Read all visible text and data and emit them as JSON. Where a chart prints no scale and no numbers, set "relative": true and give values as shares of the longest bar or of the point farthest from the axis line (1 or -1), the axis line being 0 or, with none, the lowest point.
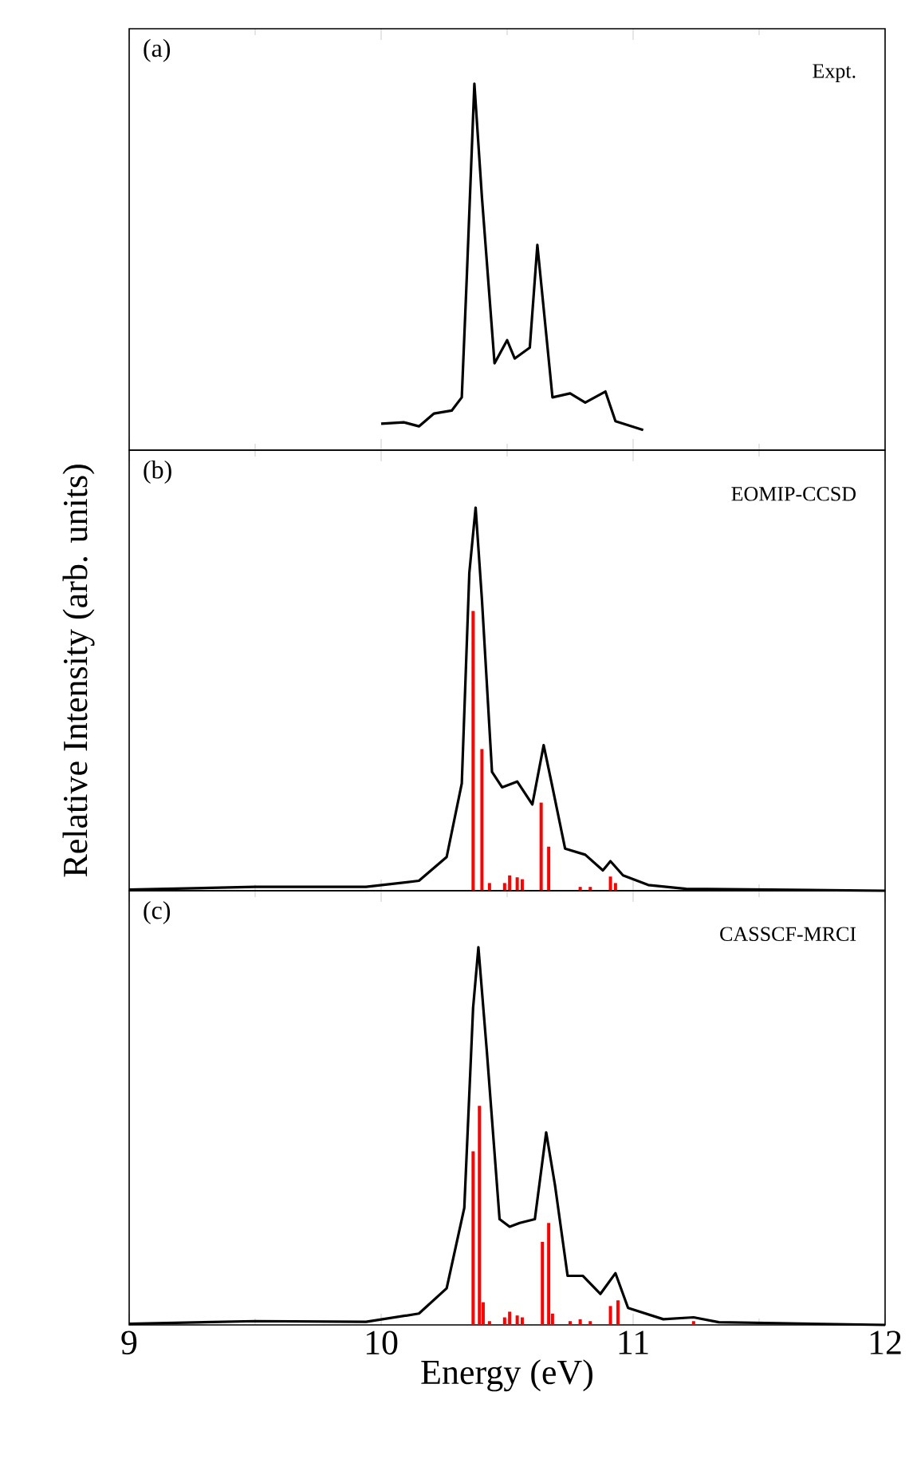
{
  "chart_data": [
    {
      "type": "line",
      "title": "(a)",
      "subtitle": "Expt.",
      "relative": true,
      "xlim": [
        9,
        12
      ],
      "tick_labels": false,
      "xticks": [
        9,
        {
          "value": 9.5,
          "label": null
        },
        10,
        {
          "value": 10.5,
          "label": null
        },
        11,
        {
          "value": 11.5,
          "label": null
        },
        12
      ],
      "series": [
        {
          "color": "#000000",
          "x": [
            10.0,
            10.09,
            10.15,
            10.21,
            10.28,
            10.32,
            10.34,
            10.37,
            10.4,
            10.45,
            10.5,
            10.53,
            10.59,
            10.62,
            10.68,
            10.75,
            10.81,
            10.89,
            10.93,
            11.04
          ],
          "values": [
            0.072,
            0.076,
            0.065,
            0.1,
            0.108,
            0.144,
            0.474,
            1.0,
            0.69,
            0.237,
            0.3,
            0.25,
            0.28,
            0.56,
            0.144,
            0.155,
            0.13,
            0.16,
            0.079,
            0.055
          ]
        }
      ]
    },
    {
      "type": "line",
      "title": "(b)",
      "subtitle": "EOMIP-CCSD",
      "ylabel": "Relative Intensity (arb. units)",
      "relative": true,
      "xlim": [
        9,
        12
      ],
      "tick_labels": false,
      "xticks": [
        9,
        {
          "value": 9.5,
          "label": null
        },
        10,
        {
          "value": 10.5,
          "label": null
        },
        11,
        {
          "value": 11.5,
          "label": null
        },
        12
      ],
      "series": [
        {
          "type": "bar",
          "color": "#ff0000",
          "x": [
            10.365,
            10.4,
            10.43,
            10.49,
            10.51,
            10.54,
            10.56,
            10.635,
            10.665,
            10.79,
            10.83,
            10.91,
            10.93
          ],
          "values": [
            0.73,
            0.37,
            0.02,
            0.02,
            0.04,
            0.035,
            0.03,
            0.23,
            0.115,
            0.01,
            0.01,
            0.037,
            0.02
          ]
        },
        {
          "color": "#000000",
          "x": [
            9.0,
            9.5,
            9.94,
            10.15,
            10.26,
            10.32,
            10.35,
            10.375,
            10.4,
            10.44,
            10.48,
            10.54,
            10.6,
            10.645,
            10.68,
            10.73,
            10.81,
            10.88,
            10.91,
            10.96,
            11.06,
            11.21,
            12.0
          ],
          "values": [
            0.003,
            0.01,
            0.01,
            0.026,
            0.088,
            0.28,
            0.83,
            1.0,
            0.76,
            0.31,
            0.27,
            0.285,
            0.225,
            0.38,
            0.27,
            0.11,
            0.094,
            0.053,
            0.077,
            0.04,
            0.015,
            0.005,
            0.0
          ]
        }
      ]
    },
    {
      "type": "line",
      "title": "(c)",
      "subtitle": "CASSCF-MRCI",
      "xlabel": "Energy (eV)",
      "relative": true,
      "xlim": [
        9,
        12
      ],
      "tick_labels": "x",
      "xticks": [
        9,
        {
          "value": 9.5,
          "label": null
        },
        10,
        {
          "value": 10.5,
          "label": null
        },
        11,
        {
          "value": 11.5,
          "label": null
        },
        12
      ],
      "series": [
        {
          "type": "bar",
          "color": "#ff0000",
          "x": [
            10.365,
            10.39,
            10.405,
            10.43,
            10.49,
            10.51,
            10.54,
            10.56,
            10.64,
            10.665,
            10.68,
            10.75,
            10.79,
            10.83,
            10.91,
            10.94,
            11.24
          ],
          "values": [
            0.46,
            0.58,
            0.06,
            0.01,
            0.02,
            0.035,
            0.025,
            0.02,
            0.22,
            0.27,
            0.03,
            0.01,
            0.015,
            0.01,
            0.05,
            0.065,
            0.01
          ]
        },
        {
          "color": "#000000",
          "x": [
            9.0,
            9.5,
            9.94,
            10.15,
            10.26,
            10.33,
            10.365,
            10.386,
            10.42,
            10.47,
            10.51,
            10.55,
            10.61,
            10.655,
            10.69,
            10.74,
            10.8,
            10.87,
            10.93,
            10.98,
            11.12,
            11.24,
            11.34,
            12.0
          ],
          "values": [
            0.003,
            0.01,
            0.008,
            0.03,
            0.097,
            0.31,
            0.84,
            1.0,
            0.72,
            0.28,
            0.26,
            0.27,
            0.28,
            0.51,
            0.37,
            0.13,
            0.13,
            0.082,
            0.137,
            0.045,
            0.015,
            0.02,
            0.007,
            0.0
          ]
        }
      ]
    }
  ]
}
